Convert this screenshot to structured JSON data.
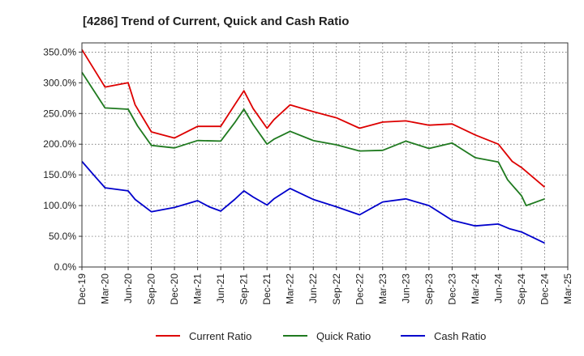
{
  "chart_data": {
    "type": "line",
    "title": "[4286]  Trend of Current, Quick and Cash Ratio",
    "xlabel": "",
    "ylabel": "",
    "ylim": [
      0,
      365
    ],
    "y_ticks": [
      0,
      50,
      100,
      150,
      200,
      250,
      300,
      350
    ],
    "y_tick_labels": [
      "0.0%",
      "50.0%",
      "100.0%",
      "150.0%",
      "200.0%",
      "250.0%",
      "300.0%",
      "350.0%"
    ],
    "x_tick_labels": [
      "Dec-19",
      "Mar-20",
      "Jun-20",
      "Sep-20",
      "Dec-20",
      "Mar-21",
      "Jun-21",
      "Sep-21",
      "Dec-21",
      "Mar-22",
      "Jun-22",
      "Sep-22",
      "Dec-22",
      "Mar-23",
      "Jun-23",
      "Sep-23",
      "Dec-23",
      "Mar-24",
      "Jun-24",
      "Sep-24",
      "Dec-24",
      "Mar-25"
    ],
    "grid": true,
    "legend_position": "bottom",
    "series": [
      {
        "name": "Current Ratio",
        "color": "#dd0000",
        "points": [
          [
            0,
            354
          ],
          [
            1,
            293
          ],
          [
            2,
            300
          ],
          [
            2.3,
            264
          ],
          [
            3,
            220
          ],
          [
            4,
            210
          ],
          [
            5,
            229
          ],
          [
            6,
            229
          ],
          [
            6.6,
            264
          ],
          [
            7,
            287
          ],
          [
            7.4,
            258
          ],
          [
            8,
            226
          ],
          [
            8.3,
            240
          ],
          [
            9,
            264
          ],
          [
            10,
            253
          ],
          [
            11,
            243
          ],
          [
            12,
            226
          ],
          [
            13,
            236
          ],
          [
            14,
            238
          ],
          [
            15,
            231
          ],
          [
            16,
            233
          ],
          [
            17,
            215
          ],
          [
            18,
            200
          ],
          [
            18.6,
            172
          ],
          [
            19,
            162
          ],
          [
            20,
            130
          ]
        ]
      },
      {
        "name": "Quick Ratio",
        "color": "#1f7a1f",
        "points": [
          [
            0,
            317
          ],
          [
            1,
            259
          ],
          [
            2,
            257
          ],
          [
            2.4,
            230
          ],
          [
            3,
            198
          ],
          [
            4,
            194
          ],
          [
            5,
            206
          ],
          [
            6,
            205
          ],
          [
            6.6,
            235
          ],
          [
            7,
            257
          ],
          [
            7.4,
            232
          ],
          [
            8,
            200
          ],
          [
            8.3,
            208
          ],
          [
            9,
            221
          ],
          [
            10,
            206
          ],
          [
            11,
            199
          ],
          [
            12,
            189
          ],
          [
            13,
            190
          ],
          [
            14,
            205
          ],
          [
            15,
            193
          ],
          [
            16,
            202
          ],
          [
            17,
            178
          ],
          [
            18,
            171
          ],
          [
            18.4,
            142
          ],
          [
            19,
            116
          ],
          [
            19.2,
            100
          ],
          [
            20,
            111
          ]
        ]
      },
      {
        "name": "Cash Ratio",
        "color": "#0000cc",
        "points": [
          [
            0,
            172
          ],
          [
            0.6,
            146
          ],
          [
            1,
            129
          ],
          [
            2,
            124
          ],
          [
            2.3,
            110
          ],
          [
            3,
            90
          ],
          [
            4,
            97
          ],
          [
            5,
            108
          ],
          [
            5.5,
            98
          ],
          [
            6,
            91
          ],
          [
            6.6,
            110
          ],
          [
            7,
            124
          ],
          [
            7.4,
            114
          ],
          [
            8,
            101
          ],
          [
            8.3,
            111
          ],
          [
            9,
            128
          ],
          [
            10,
            110
          ],
          [
            11,
            98
          ],
          [
            12,
            85
          ],
          [
            13,
            106
          ],
          [
            14,
            111
          ],
          [
            15,
            100
          ],
          [
            16,
            76
          ],
          [
            17,
            67
          ],
          [
            18,
            70
          ],
          [
            18.5,
            62
          ],
          [
            19,
            57
          ],
          [
            20,
            39
          ]
        ]
      }
    ]
  }
}
